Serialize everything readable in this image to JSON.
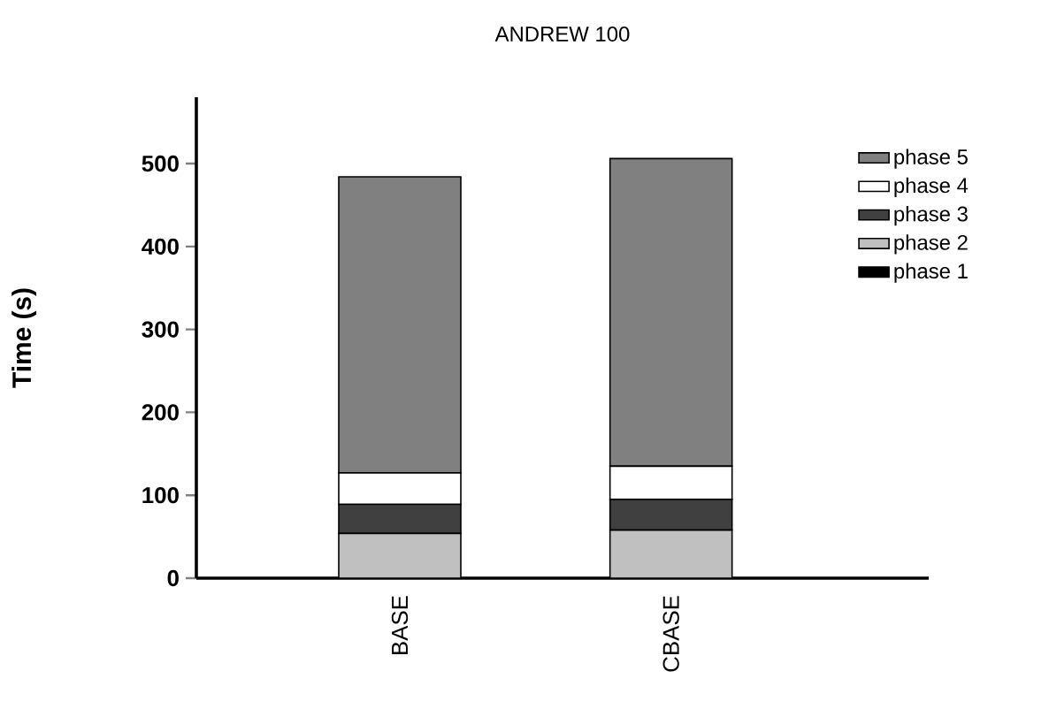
{
  "chart_data": {
    "type": "bar",
    "title": "ANDREW 100",
    "ylabel": "Time (s)",
    "stacked": true,
    "legend": "top right",
    "categories": [
      "BASE",
      "CBASE"
    ],
    "series": [
      {
        "name": "phase 1",
        "color": "#000000",
        "values": [
          0,
          0
        ]
      },
      {
        "name": "phase 2",
        "color": "#c0c0c0",
        "values": [
          54,
          58
        ]
      },
      {
        "name": "phase 3",
        "color": "#404040",
        "values": [
          35,
          37
        ]
      },
      {
        "name": "phase 4",
        "color": "#ffffff",
        "values": [
          38,
          40
        ]
      },
      {
        "name": "phase 5",
        "color": "#808080",
        "values": [
          357,
          371
        ]
      }
    ],
    "ylim": [
      0,
      580
    ],
    "yticks": [
      0,
      100,
      200,
      300,
      400,
      500
    ]
  }
}
